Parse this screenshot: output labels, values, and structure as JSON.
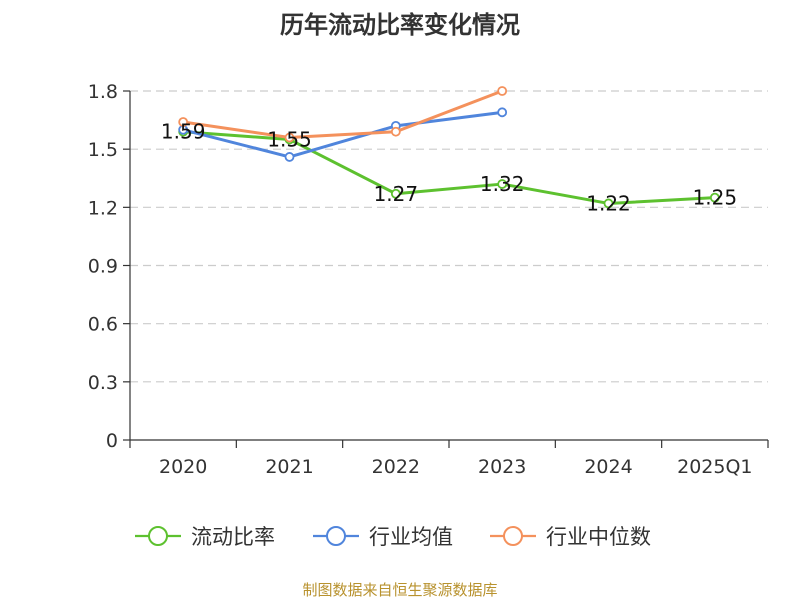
{
  "chart_data": {
    "type": "line",
    "title": "历年流动比率变化情况",
    "categories": [
      "2020",
      "2021",
      "2022",
      "2023",
      "2024",
      "2025Q1"
    ],
    "ylim": [
      0,
      1.8
    ],
    "yticks": [
      "0",
      "0.3",
      "0.6",
      "0.9",
      "1.2",
      "1.5",
      "1.8"
    ],
    "grid": true,
    "legend_position": "bottom",
    "series": [
      {
        "name": "流动比率",
        "color": "#5dc12f",
        "values": [
          1.59,
          1.55,
          1.27,
          1.32,
          1.22,
          1.25
        ],
        "labels": [
          "1.59",
          "1.55",
          "1.27",
          "1.32",
          "1.22",
          "1.25"
        ],
        "show_labels": true
      },
      {
        "name": "行业均值",
        "color": "#5085dc",
        "values": [
          1.6,
          1.46,
          1.62,
          1.69,
          null,
          null
        ],
        "show_labels": false
      },
      {
        "name": "行业中位数",
        "color": "#f4915c",
        "values": [
          1.64,
          1.56,
          1.59,
          1.8,
          null,
          null
        ],
        "show_labels": false
      }
    ]
  },
  "source_text": "制图数据来自恒生聚源数据库"
}
